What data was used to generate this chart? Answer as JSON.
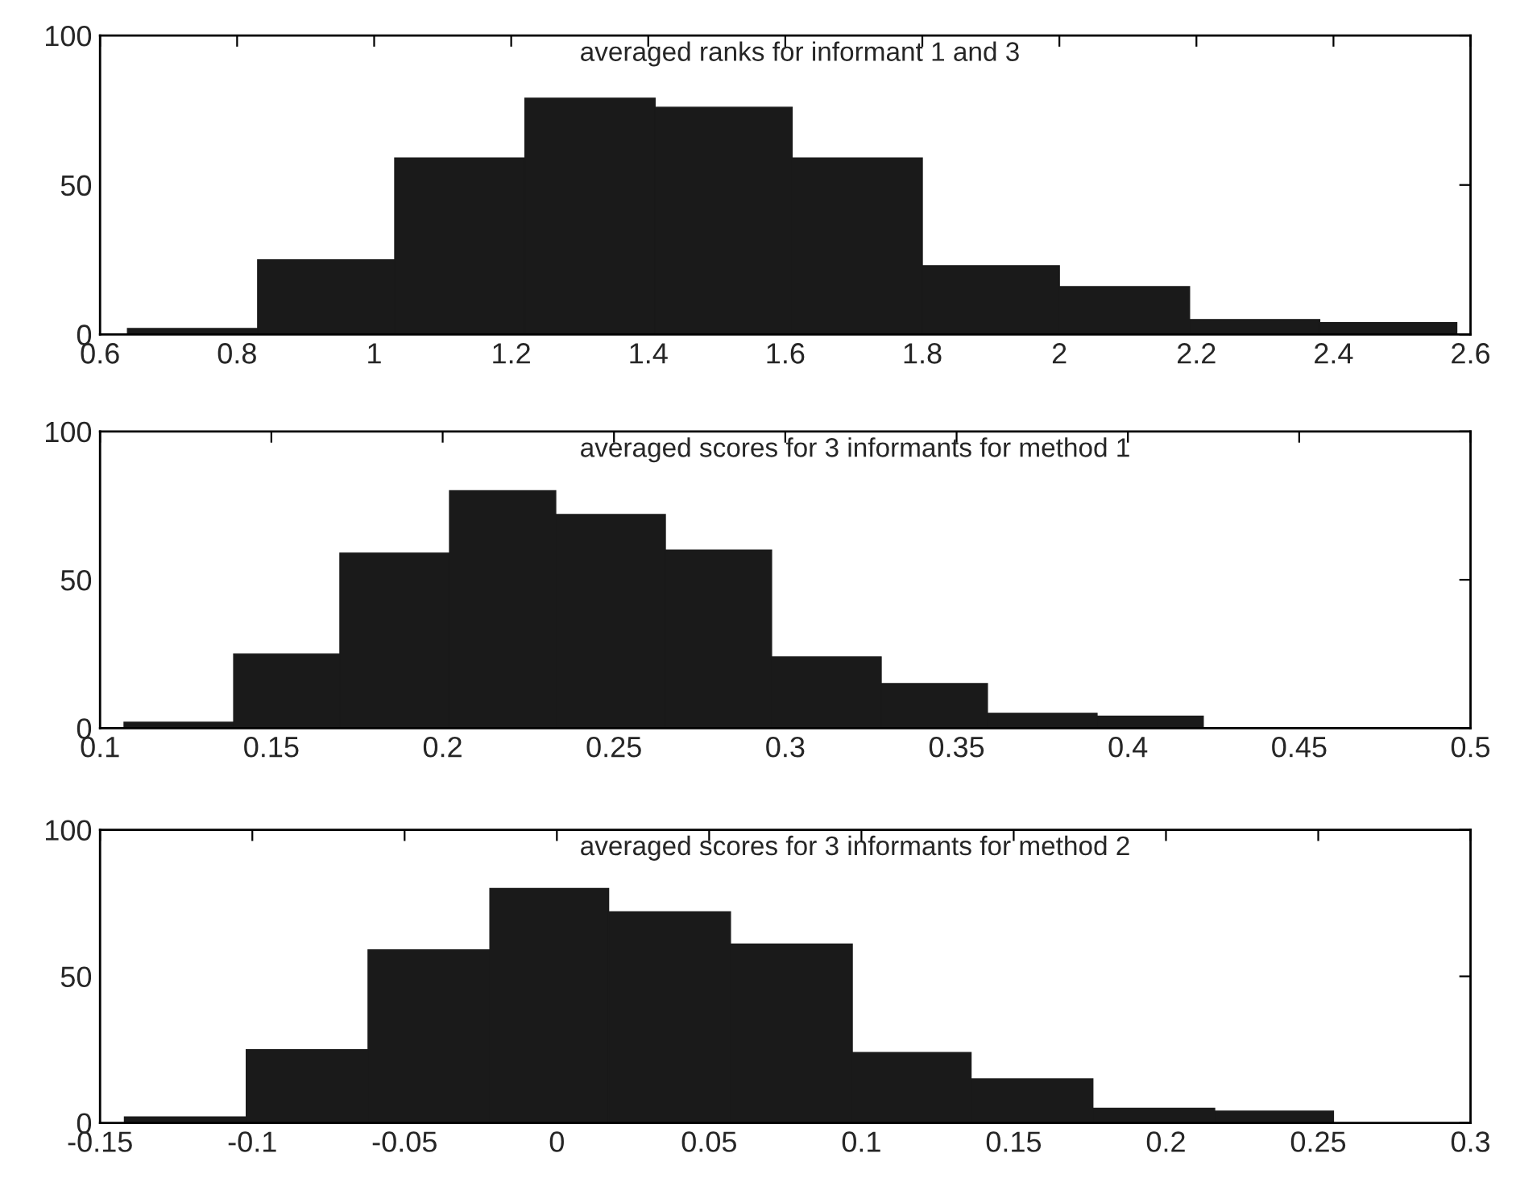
{
  "chart_data": [
    {
      "type": "histogram",
      "title": "averaged ranks for informant 1 and 3",
      "bins": [
        0.64,
        0.83,
        1.03,
        1.22,
        1.41,
        1.61,
        1.8,
        2.0,
        2.19,
        2.38,
        2.58
      ],
      "values": [
        2,
        25,
        59,
        79,
        76,
        59,
        23,
        16,
        5,
        4
      ],
      "color": "#1a1a1a",
      "xlim": [
        0.6,
        2.6
      ],
      "xticks": [
        0.6,
        0.8,
        1,
        1.2,
        1.4,
        1.6,
        1.8,
        2,
        2.2,
        2.4,
        2.6
      ],
      "ylim": [
        0,
        100
      ],
      "yticks": [
        0,
        50,
        100
      ],
      "grid": false
    },
    {
      "type": "histogram",
      "title": "averaged scores for 3 informants for method 1",
      "bins": [
        0.107,
        0.139,
        0.17,
        0.202,
        0.233,
        0.265,
        0.296,
        0.328,
        0.359,
        0.391,
        0.422
      ],
      "values": [
        2,
        25,
        59,
        80,
        72,
        60,
        24,
        15,
        5,
        4
      ],
      "color": "#1a1a1a",
      "xlim": [
        0.1,
        0.5
      ],
      "xticks": [
        0.1,
        0.15,
        0.2,
        0.25,
        0.3,
        0.35,
        0.4,
        0.45,
        0.5
      ],
      "ylim": [
        0,
        100
      ],
      "yticks": [
        0,
        50,
        100
      ],
      "grid": false
    },
    {
      "type": "histogram",
      "title": "averaged scores for 3 informants for method 2",
      "bins": [
        -0.142,
        -0.102,
        -0.062,
        -0.022,
        0.017,
        0.057,
        0.097,
        0.136,
        0.176,
        0.216,
        0.255
      ],
      "values": [
        2,
        25,
        59,
        80,
        72,
        61,
        24,
        15,
        5,
        4
      ],
      "color": "#1a1a1a",
      "xlim": [
        -0.15,
        0.3
      ],
      "xticks": [
        -0.15,
        -0.1,
        -0.05,
        0,
        0.05,
        0.1,
        0.15,
        0.2,
        0.25,
        0.3
      ],
      "ylim": [
        0,
        100
      ],
      "yticks": [
        0,
        50,
        100
      ],
      "grid": false
    }
  ]
}
